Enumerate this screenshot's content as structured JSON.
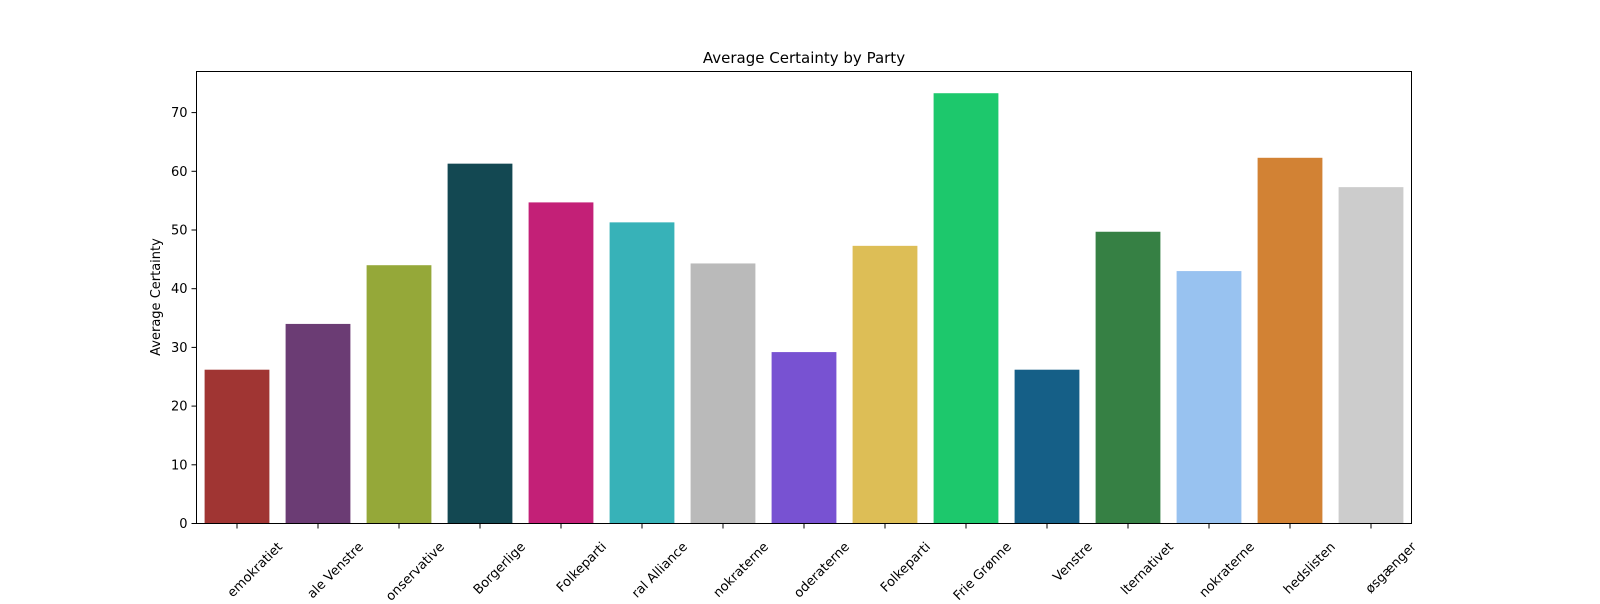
{
  "chart_data": {
    "type": "bar",
    "title": "Average Certainty by Party",
    "xlabel": "",
    "ylabel": "Average Certainty",
    "ylim": [
      0,
      77
    ],
    "yticks": [
      0,
      10,
      20,
      30,
      40,
      50,
      60,
      70
    ],
    "grid": false,
    "categories": [
      "emokratiet",
      "ale Venstre",
      "onservative",
      "Borgerlige",
      "Folkeparti",
      "ral Alliance",
      "nokraterne",
      "oderaterne",
      "Folkeparti",
      "Frie Grønne",
      "Venstre",
      "lternativet",
      "nokraterne",
      "hedslisten",
      "øsgænger"
    ],
    "values": [
      26.2,
      34.0,
      44.0,
      61.3,
      54.7,
      51.3,
      44.3,
      29.2,
      47.3,
      73.3,
      26.2,
      49.7,
      43.0,
      62.3,
      57.3
    ],
    "colors": [
      "#a03533",
      "#6b3c74",
      "#95a839",
      "#134852",
      "#c32077",
      "#37b2b8",
      "#bababa",
      "#7852d2",
      "#ddbe56",
      "#1dc86c",
      "#155f87",
      "#368044",
      "#98c2f0",
      "#d28234",
      "#cccccc"
    ]
  }
}
